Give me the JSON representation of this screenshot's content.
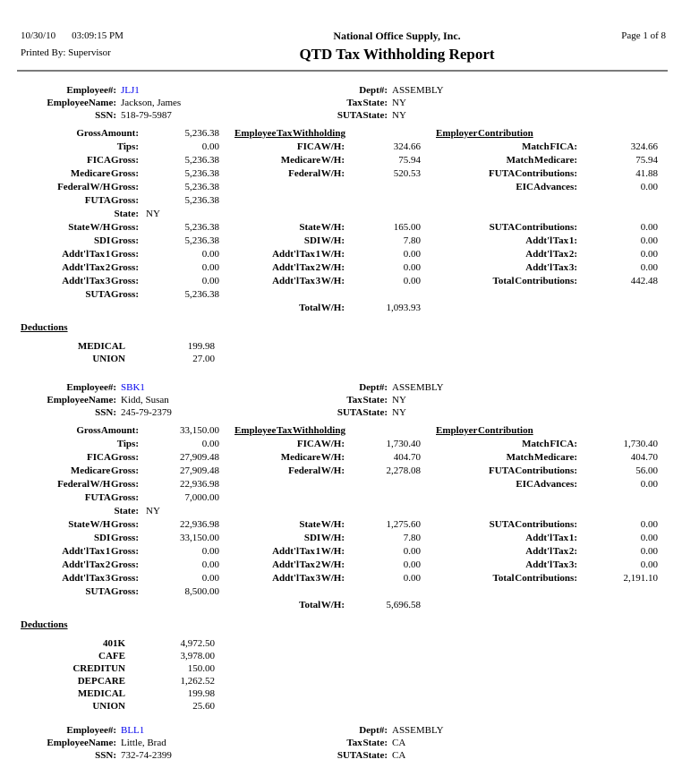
{
  "page_header": {
    "date": "10/30/10",
    "time": "03:09:15 PM",
    "printed_by_label": "Printed By:",
    "printed_by": "Supervisor",
    "company": "National Office Supply, Inc.",
    "report_title": "QTD Tax Withholding Report",
    "page_label": "Page 1 of 8"
  },
  "colors": {
    "employee_id_link": "#0000ee",
    "text": "#000000",
    "rule": "#7a7a7a"
  },
  "labels": {
    "employee_no": "Employee#:",
    "employee_name": "EmployeeName:",
    "ssn": "SSN:",
    "dept": "Dept#:",
    "tax_state": "Tax State:",
    "suta_state": "SUTA State:",
    "deductions": "Deductions"
  },
  "employees": [
    {
      "id": "JLJ1",
      "name": "Jackson, James",
      "ssn": "518-79-5987",
      "dept": "ASSEMBLY",
      "tax_state": "NY",
      "suta_state": "NY",
      "rows": [
        {
          "c1l": "Gross Amount:",
          "c1v": "5,236.38",
          "h2": "Employee Tax Withholding",
          "h3": "Employer Contribution"
        },
        {
          "c1l": "Tips:",
          "c1v": "0.00",
          "c2l": "FICA W/H:",
          "c2v": "324.66",
          "c3l": "Match FICA:",
          "c3v": "324.66"
        },
        {
          "c1l": "FICA Gross:",
          "c1v": "5,236.38",
          "c2l": "Medicare W/H:",
          "c2v": "75.94",
          "c3l": "Match Medicare:",
          "c3v": "75.94"
        },
        {
          "c1l": "Medicare Gross:",
          "c1v": "5,236.38",
          "c2l": "Federal W/H:",
          "c2v": "520.53",
          "c3l": "FUTA Contributions:",
          "c3v": "41.88"
        },
        {
          "c1l": "Federal W/H Gross:",
          "c1v": "5,236.38",
          "c3l": "EIC Advances:",
          "c3v": "0.00"
        },
        {
          "c1l": "FUTA Gross:",
          "c1v": "5,236.38"
        },
        {
          "t": "state",
          "c1l": "State:",
          "c1v": "NY"
        },
        {
          "c1l": "State W/H Gross:",
          "c1v": "5,236.38",
          "c2l": "State W/H:",
          "c2v": "165.00",
          "c3l": "SUTA Contributions:",
          "c3v": "0.00"
        },
        {
          "c1l": "SDI Gross:",
          "c1v": "5,236.38",
          "c2l": "SDI W/H:",
          "c2v": "7.80",
          "c3l": "Addt'l Tax 1:",
          "c3v": "0.00"
        },
        {
          "c1l": "Addt'l Tax 1 Gross:",
          "c1v": "0.00",
          "c2l": "Addt'l Tax 1 W/H:",
          "c2v": "0.00",
          "c3l": "Addt'l Tax 2:",
          "c3v": "0.00"
        },
        {
          "c1l": "Addt'l Tax 2 Gross:",
          "c1v": "0.00",
          "c2l": "Addt'l Tax 2 W/H:",
          "c2v": "0.00",
          "c3l": "Addt'l Tax 3:",
          "c3v": "0.00"
        },
        {
          "c1l": "Addt'l Tax 3 Gross:",
          "c1v": "0.00",
          "c2l": "Addt'l Tax 3 W/H:",
          "c2v": "0.00",
          "c3l": "Total Contributions:",
          "c3v": "442.48"
        },
        {
          "c1l": "SUTA Gross:",
          "c1v": "5,236.38"
        },
        {
          "c2l": "Total W/H:",
          "c2v": "1,093.93"
        }
      ],
      "deductions": [
        {
          "name": "MEDICAL",
          "amount": "199.98"
        },
        {
          "name": "UNION",
          "amount": "27.00"
        }
      ]
    },
    {
      "id": "SBK1",
      "name": "Kidd, Susan",
      "ssn": "245-79-2379",
      "dept": "ASSEMBLY",
      "tax_state": "NY",
      "suta_state": "NY",
      "rows": [
        {
          "c1l": "Gross Amount:",
          "c1v": "33,150.00",
          "h2": "Employee Tax Withholding",
          "h3": "Employer Contribution"
        },
        {
          "c1l": "Tips:",
          "c1v": "0.00",
          "c2l": "FICA W/H:",
          "c2v": "1,730.40",
          "c3l": "Match FICA:",
          "c3v": "1,730.40"
        },
        {
          "c1l": "FICA Gross:",
          "c1v": "27,909.48",
          "c2l": "Medicare W/H:",
          "c2v": "404.70",
          "c3l": "Match Medicare:",
          "c3v": "404.70"
        },
        {
          "c1l": "Medicare Gross:",
          "c1v": "27,909.48",
          "c2l": "Federal W/H:",
          "c2v": "2,278.08",
          "c3l": "FUTA Contributions:",
          "c3v": "56.00"
        },
        {
          "c1l": "Federal W/H Gross:",
          "c1v": "22,936.98",
          "c3l": "EIC Advances:",
          "c3v": "0.00"
        },
        {
          "c1l": "FUTA Gross:",
          "c1v": "7,000.00"
        },
        {
          "t": "state",
          "c1l": "State:",
          "c1v": "NY"
        },
        {
          "c1l": "State W/H Gross:",
          "c1v": "22,936.98",
          "c2l": "State W/H:",
          "c2v": "1,275.60",
          "c3l": "SUTA Contributions:",
          "c3v": "0.00"
        },
        {
          "c1l": "SDI Gross:",
          "c1v": "33,150.00",
          "c2l": "SDI W/H:",
          "c2v": "7.80",
          "c3l": "Addt'l Tax 1:",
          "c3v": "0.00"
        },
        {
          "c1l": "Addt'l Tax 1 Gross:",
          "c1v": "0.00",
          "c2l": "Addt'l Tax 1 W/H:",
          "c2v": "0.00",
          "c3l": "Addt'l Tax 2:",
          "c3v": "0.00"
        },
        {
          "c1l": "Addt'l Tax 2 Gross:",
          "c1v": "0.00",
          "c2l": "Addt'l Tax 2 W/H:",
          "c2v": "0.00",
          "c3l": "Addt'l Tax 3:",
          "c3v": "0.00"
        },
        {
          "c1l": "Addt'l Tax 3 Gross:",
          "c1v": "0.00",
          "c2l": "Addt'l Tax 3 W/H:",
          "c2v": "0.00",
          "c3l": "Total Contributions:",
          "c3v": "2,191.10"
        },
        {
          "c1l": "SUTA Gross:",
          "c1v": "8,500.00"
        },
        {
          "c2l": "Total W/H:",
          "c2v": "5,696.58"
        }
      ],
      "deductions": [
        {
          "name": "401K",
          "amount": "4,972.50"
        },
        {
          "name": "CAFE",
          "amount": "3,978.00"
        },
        {
          "name": "CREDITUN",
          "amount": "150.00"
        },
        {
          "name": "DEP CARE",
          "amount": "1,262.52"
        },
        {
          "name": "MEDICAL",
          "amount": "199.98"
        },
        {
          "name": "UNION",
          "amount": "25.60"
        }
      ]
    },
    {
      "id": "BLL1",
      "name": "Little, Brad",
      "ssn": "732-74-2399",
      "dept": "ASSEMBLY",
      "tax_state": "CA",
      "suta_state": "CA",
      "rows": [],
      "deductions": []
    }
  ]
}
